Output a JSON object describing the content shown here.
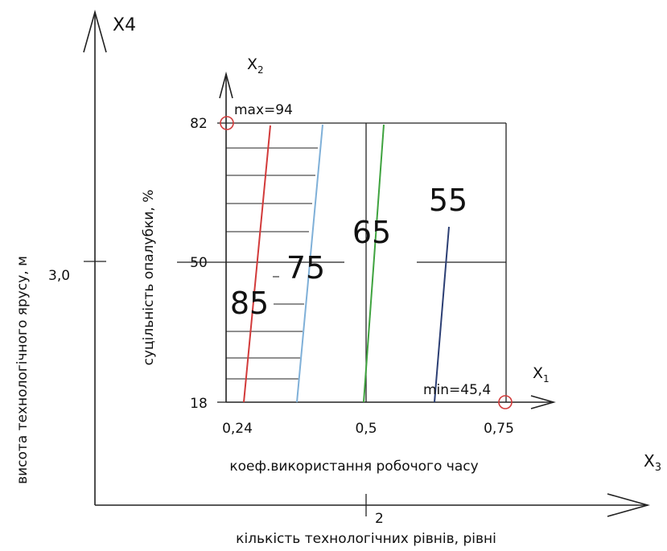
{
  "axes": {
    "x1": {
      "name": "X",
      "sub": "1",
      "label": "коеф.використання робочого часу",
      "ticks": [
        "0,24",
        "0,5",
        "0,75"
      ]
    },
    "x2": {
      "name": "X",
      "sub": "2",
      "label": "суцільність опалубки, %",
      "ticks": [
        "18",
        "50",
        "82"
      ]
    },
    "x3": {
      "name": "X",
      "sub": "3",
      "label": "кількість технологічних рівнів, рівні",
      "tick": "2"
    },
    "x4": {
      "name": "X4",
      "label": "висота технологічного ярусу, м",
      "tick": "3,0"
    }
  },
  "annotations": {
    "max": "max=94",
    "min": "min=45,4"
  },
  "contours": [
    {
      "value": "85",
      "color": "#d23a3a"
    },
    {
      "value": "75",
      "color": "#7fb0d8"
    },
    {
      "value": "65",
      "color": "#3fa33f"
    },
    {
      "value": "55",
      "color": "#2c3f74"
    }
  ],
  "colors": {
    "marker": "#d23a3a"
  }
}
